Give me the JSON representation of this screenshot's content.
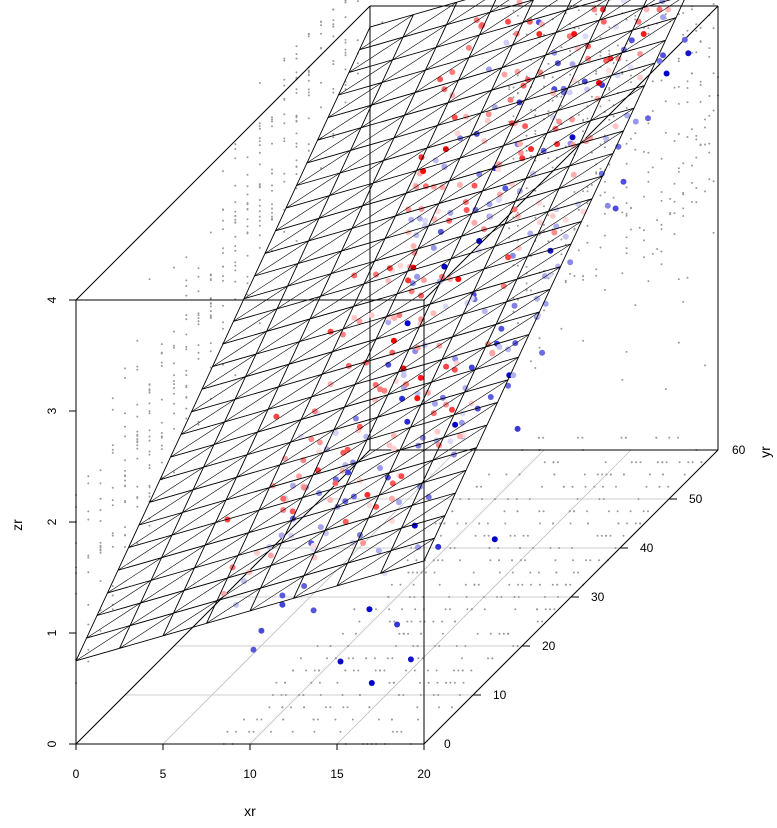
{
  "chart_data": {
    "type": "scatter",
    "title": "",
    "xlabel": "xr",
    "ylabel": "yr",
    "zlabel": "zr",
    "xlim": [
      0,
      20
    ],
    "ylim": [
      0,
      60
    ],
    "zlim": [
      0,
      4
    ],
    "x_ticks": [
      "0",
      "5",
      "10",
      "15",
      "20"
    ],
    "y_ticks": [
      "0",
      "10",
      "20",
      "30",
      "40",
      "50",
      "60"
    ],
    "z_ticks": [
      "0",
      "1",
      "2",
      "3",
      "4"
    ],
    "regression_plane": {
      "intercept": 0.75,
      "coef_x": 0.045,
      "coef_y": 0.051
    },
    "colors": {
      "above": "#ff0000",
      "below": "#0000cc",
      "grid": "#bfbfbf",
      "shadow": "#9a9a9a",
      "plane": "#000000",
      "box": "#000000"
    },
    "highlighted_points": [
      {
        "x": 14.5,
        "y": 24,
        "z": 4.3,
        "color": "#e00000"
      },
      {
        "x": 19,
        "y": 18,
        "z": 1.05,
        "color": "#0000cc"
      }
    ]
  }
}
